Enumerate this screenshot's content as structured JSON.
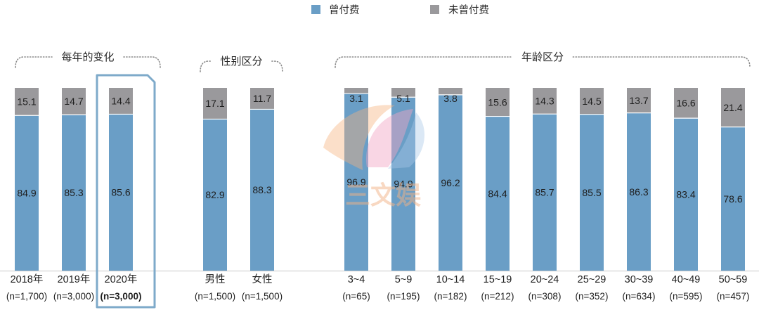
{
  "chart_data": {
    "type": "bar",
    "stacked": true,
    "ylim": [
      0,
      100
    ],
    "grid": false,
    "legend_position": "top-center",
    "series": [
      {
        "name": "曾付费",
        "color": "#6a9ec6",
        "values": [
          84.9,
          85.3,
          85.6,
          82.9,
          88.3,
          96.9,
          94.9,
          96.2,
          84.4,
          85.7,
          85.5,
          86.3,
          83.4,
          78.6
        ]
      },
      {
        "name": "未曾付费",
        "color": "#9a999c",
        "values": [
          15.1,
          14.7,
          14.4,
          17.1,
          11.7,
          3.1,
          5.1,
          3.8,
          15.6,
          14.3,
          14.5,
          13.7,
          16.6,
          21.4
        ]
      }
    ],
    "categories": [
      "2018年",
      "2019年",
      "2020年",
      "男性",
      "女性",
      "3~4",
      "5~9",
      "10~14",
      "15~19",
      "20~24",
      "25~29",
      "30~39",
      "40~49",
      "50~59"
    ],
    "sample_sizes": [
      "(n=1,700)",
      "(n=3,000)",
      "(n=3,000)",
      "(n=1,500)",
      "(n=1,500)",
      "(n=65)",
      "(n=195)",
      "(n=182)",
      "(n=212)",
      "(n=308)",
      "(n=352)",
      "(n=634)",
      "(n=595)",
      "(n=457)"
    ],
    "groups": [
      {
        "label": "每年的变化",
        "count": 3
      },
      {
        "label": "性别区分",
        "count": 2
      },
      {
        "label": "年龄区分",
        "count": 9
      }
    ],
    "highlight_index": 2
  },
  "colors": {
    "highlight": "#7eaaca",
    "bracket": "#8a8a8a",
    "baseline": "#c8c8c8"
  },
  "watermark": {
    "text": "三文娱"
  }
}
